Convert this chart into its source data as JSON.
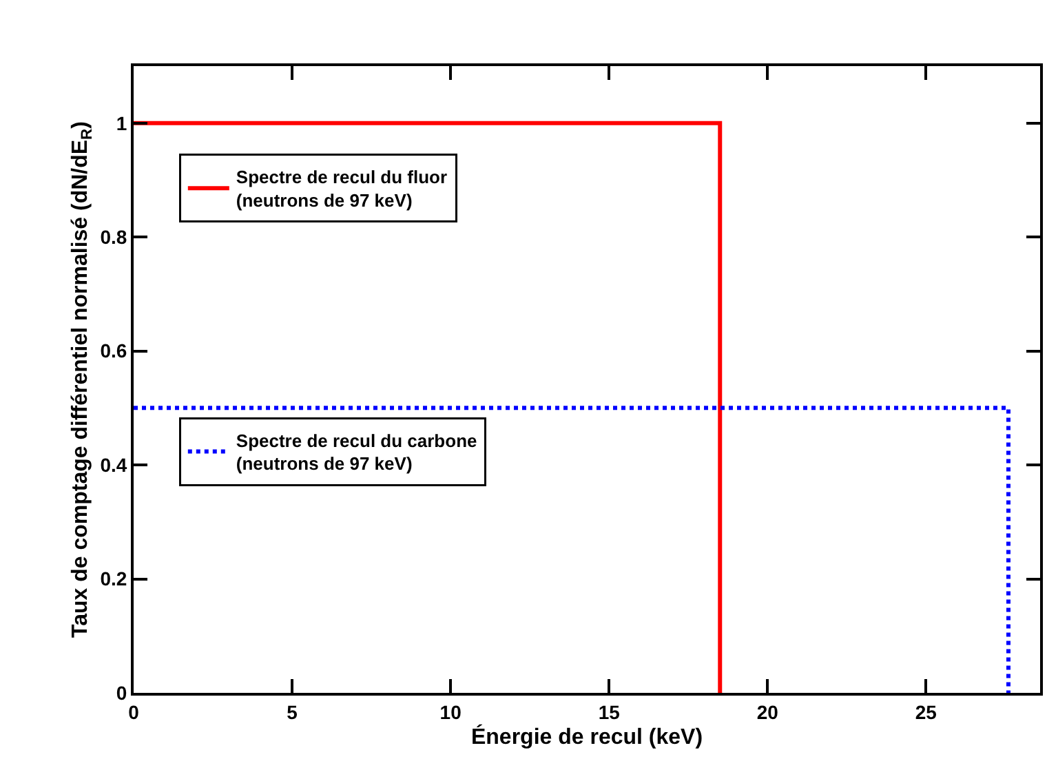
{
  "chart_data": {
    "type": "step",
    "xlabel": "Énergie de recul (keV)",
    "ylabel": "Taux de comptage différentiel normalisé (dN/dE$_{R}$)",
    "xlim": [
      0,
      28.6
    ],
    "xticks": [
      0,
      5,
      10,
      15,
      20,
      25
    ],
    "ylim": [
      0,
      1.1
    ],
    "yticks": [
      0,
      0.2,
      0.4,
      0.6,
      0.8,
      1
    ],
    "legend": "left",
    "marker": "none",
    "series": [
      {
        "name": "Spectre de recul du fluor\n(neutrons de 97 keV)",
        "color": "#ff0000",
        "line_style": "solid",
        "x": [
          0,
          18.5
        ],
        "values": [
          1,
          0
        ]
      },
      {
        "name": "Spectre de recul du carbone\n(neutrons de 97 keV)",
        "color": "#0000ff",
        "line_style": "dotted",
        "x": [
          0,
          27.6
        ],
        "values": [
          0.5,
          0
        ]
      }
    ]
  }
}
